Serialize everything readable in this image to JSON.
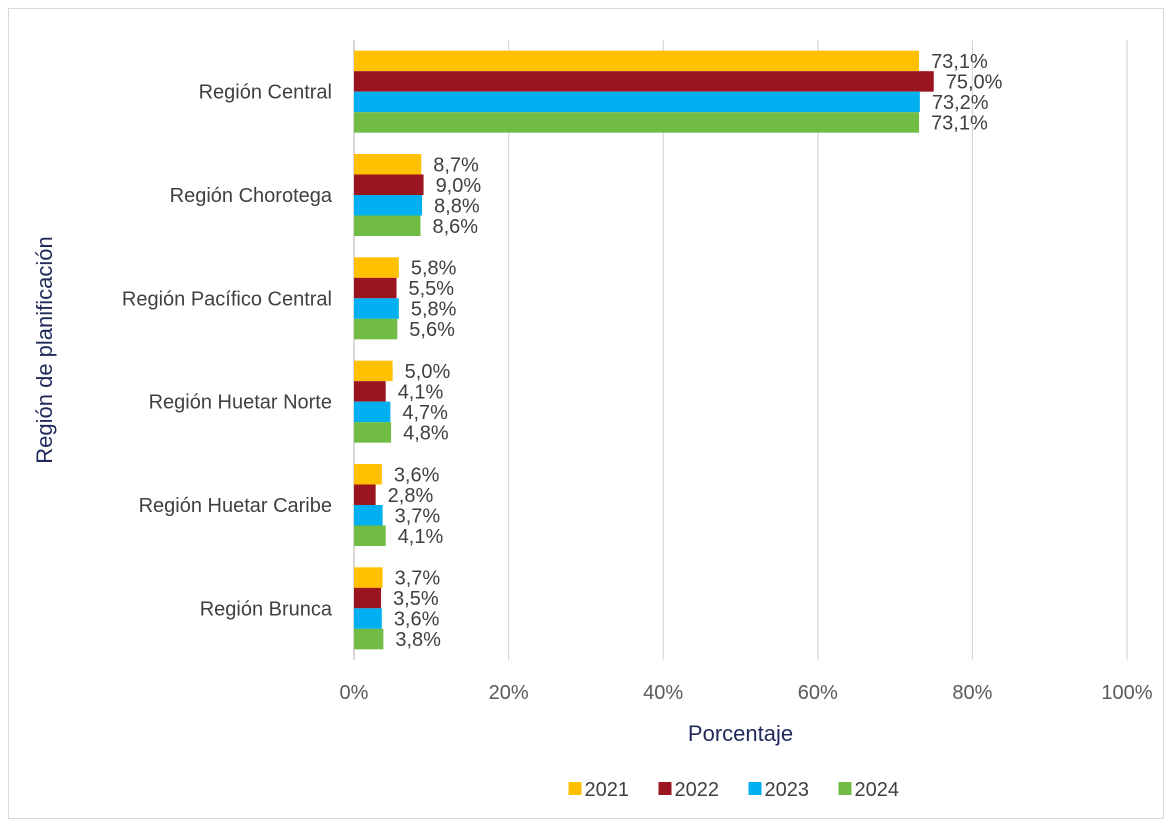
{
  "chart_data": {
    "type": "bar",
    "orientation": "horizontal",
    "categories": [
      "Región Central",
      "Región Chorotega",
      "Región Pacífico Central",
      "Región Huetar Norte",
      "Región Huetar Caribe",
      "Región Brunca"
    ],
    "series": [
      {
        "name": "2021",
        "color": "#ffc000",
        "values": [
          73.1,
          8.7,
          5.8,
          5.0,
          3.6,
          3.7
        ],
        "labels": [
          "73,1%",
          "8,7%",
          "5,8%",
          "5,0%",
          "3,6%",
          "3,7%"
        ]
      },
      {
        "name": "2022",
        "color": "#9b1521",
        "values": [
          75.0,
          9.0,
          5.5,
          4.1,
          2.8,
          3.5
        ],
        "labels": [
          "75,0%",
          "9,0%",
          "5,5%",
          "4,1%",
          "2,8%",
          "3,5%"
        ]
      },
      {
        "name": "2023",
        "color": "#00b0f0",
        "values": [
          73.2,
          8.8,
          5.8,
          4.7,
          3.7,
          3.6
        ],
        "labels": [
          "73,2%",
          "8,8%",
          "5,8%",
          "4,7%",
          "3,7%",
          "3,6%"
        ]
      },
      {
        "name": "2024",
        "color": "#70bc44",
        "values": [
          73.1,
          8.6,
          5.6,
          4.8,
          4.1,
          3.8
        ],
        "labels": [
          "73,1%",
          "8,6%",
          "5,6%",
          "4,8%",
          "4,1%",
          "3,8%"
        ]
      }
    ],
    "xlim": [
      0,
      100
    ],
    "xticks": [
      "0%",
      "20%",
      "40%",
      "60%",
      "80%",
      "100%"
    ],
    "xlabel": "Porcentaje",
    "ylabel": "Región de planificación",
    "grid": true,
    "legend_position": "bottom"
  }
}
